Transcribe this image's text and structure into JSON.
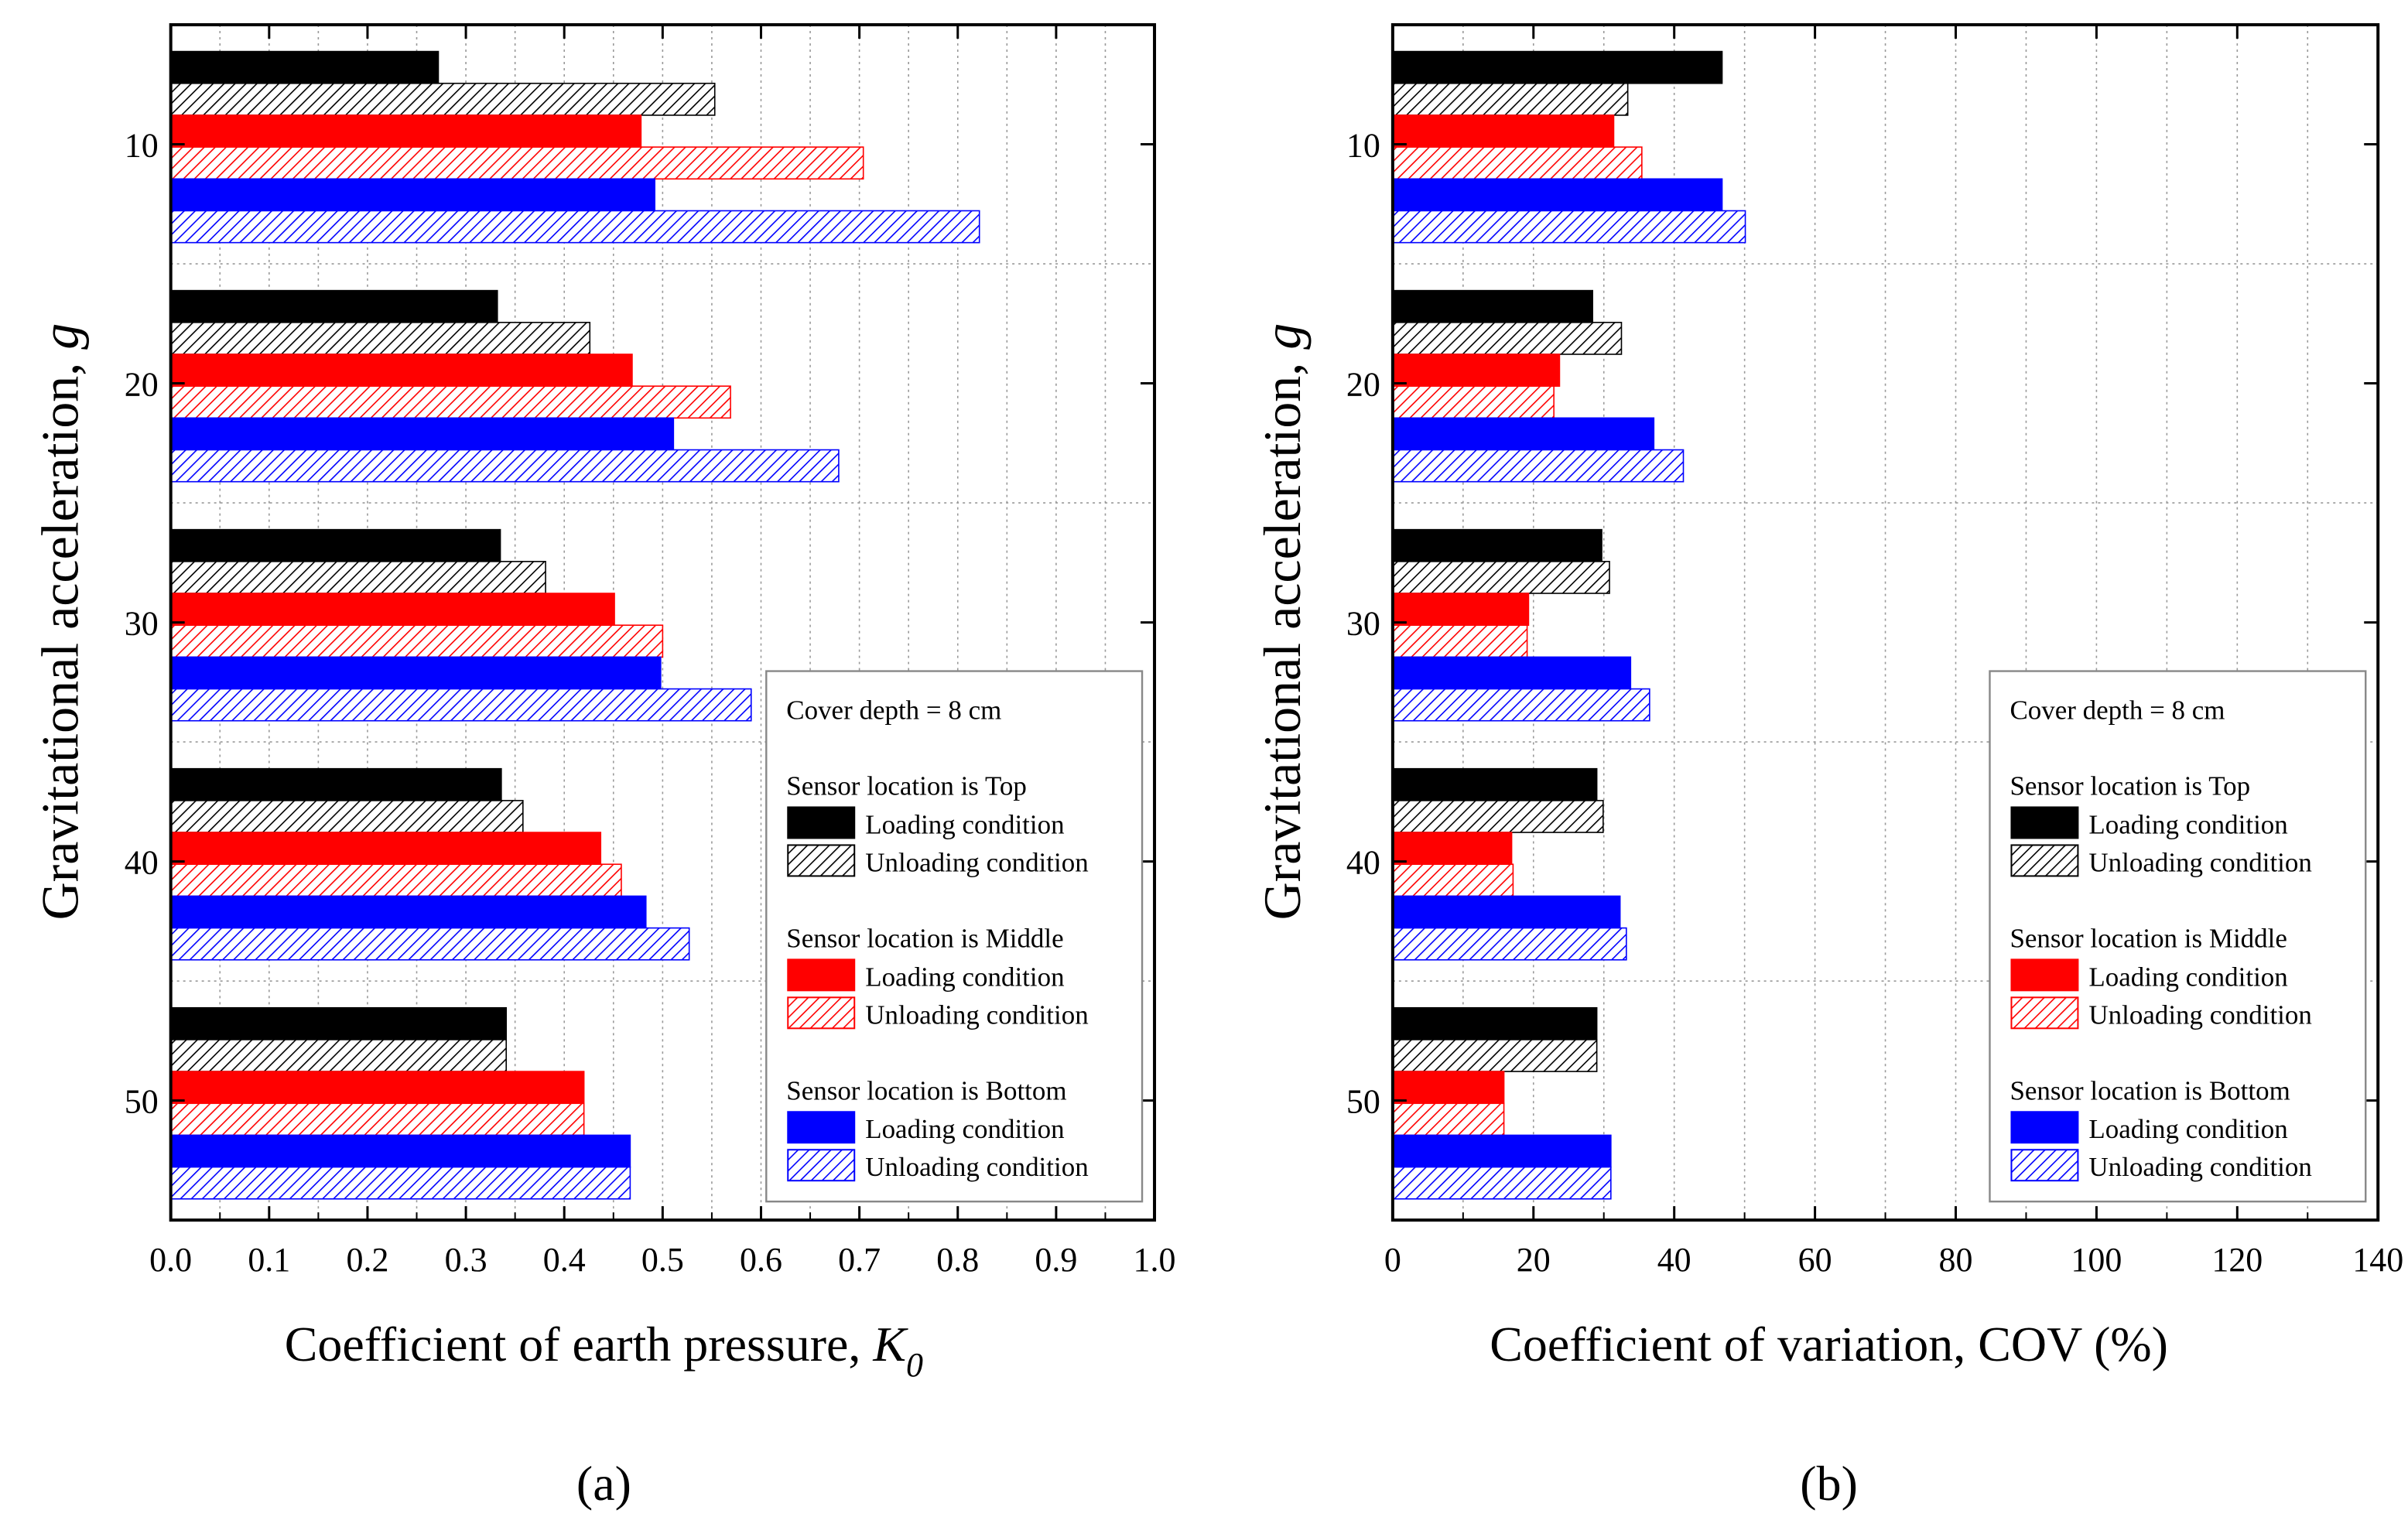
{
  "chart_data": [
    {
      "type": "bar",
      "orientation": "horizontal",
      "panel_label": "(a)",
      "xlabel": "Coefficient of earth pressure, ",
      "xlabel_symbol": "K",
      "xlabel_subscript": "0",
      "ylabel": "Gravitational acceleration, ",
      "ylabel_symbol": "g",
      "xlim": [
        0,
        1.0
      ],
      "xticks": [
        "0.0",
        "0.1",
        "0.2",
        "0.3",
        "0.4",
        "0.5",
        "0.6",
        "0.7",
        "0.8",
        "0.9",
        "1.0"
      ],
      "xtick_values": [
        0,
        0.1,
        0.2,
        0.3,
        0.4,
        0.5,
        0.6,
        0.7,
        0.8,
        0.9,
        1.0
      ],
      "categories": [
        "10",
        "20",
        "30",
        "40",
        "50"
      ],
      "grid": true,
      "series": [
        {
          "name": "Top - Loading condition",
          "values": [
            0.272,
            0.332,
            0.335,
            0.336,
            0.341
          ]
        },
        {
          "name": "Top - Unloading condition",
          "values": [
            0.553,
            0.426,
            0.381,
            0.358,
            0.341
          ]
        },
        {
          "name": "Middle - Loading condition",
          "values": [
            0.478,
            0.469,
            0.451,
            0.437,
            0.42
          ]
        },
        {
          "name": "Middle - Unloading condition",
          "values": [
            0.704,
            0.569,
            0.5,
            0.458,
            0.42
          ]
        },
        {
          "name": "Bottom - Loading condition",
          "values": [
            0.492,
            0.511,
            0.498,
            0.483,
            0.467
          ]
        },
        {
          "name": "Bottom - Unloading condition",
          "values": [
            0.822,
            0.679,
            0.59,
            0.527,
            0.467
          ]
        }
      ]
    },
    {
      "type": "bar",
      "orientation": "horizontal",
      "panel_label": "(b)",
      "xlabel": "Coefficient of variation, COV (%)",
      "ylabel": "Gravitational acceleration, ",
      "ylabel_symbol": "g",
      "xlim": [
        0,
        140
      ],
      "xticks": [
        "0",
        "20",
        "40",
        "60",
        "80",
        "100",
        "120",
        "140"
      ],
      "xtick_values": [
        0,
        20,
        40,
        60,
        80,
        100,
        120,
        140
      ],
      "categories": [
        "10",
        "20",
        "30",
        "40",
        "50"
      ],
      "grid": true,
      "series": [
        {
          "name": "Top - Loading condition",
          "values": [
            46.8,
            28.4,
            29.7,
            29.0,
            29.0
          ]
        },
        {
          "name": "Top - Unloading condition",
          "values": [
            33.4,
            32.5,
            30.8,
            29.9,
            29.0
          ]
        },
        {
          "name": "Middle - Loading condition",
          "values": [
            31.4,
            23.7,
            19.3,
            16.9,
            15.8
          ]
        },
        {
          "name": "Middle - Unloading condition",
          "values": [
            35.4,
            22.9,
            19.1,
            17.1,
            15.8
          ]
        },
        {
          "name": "Bottom - Loading condition",
          "values": [
            46.8,
            37.1,
            33.8,
            32.3,
            31.0
          ]
        },
        {
          "name": "Bottom - Unloading condition",
          "values": [
            50.1,
            41.3,
            36.5,
            33.2,
            31.0
          ]
        }
      ]
    }
  ],
  "legend": {
    "placement": "bottom-right",
    "title": "Cover depth = 8 cm",
    "groups": [
      {
        "heading": "Sensor location is Top",
        "color": "#000000",
        "items": [
          "Loading condition",
          "Unloading condition"
        ]
      },
      {
        "heading": "Sensor location is Middle",
        "color": "#ff0000",
        "items": [
          "Loading condition",
          "Unloading condition"
        ]
      },
      {
        "heading": "Sensor location is Bottom",
        "color": "#0000ff",
        "items": [
          "Loading condition",
          "Unloading condition"
        ]
      }
    ]
  }
}
